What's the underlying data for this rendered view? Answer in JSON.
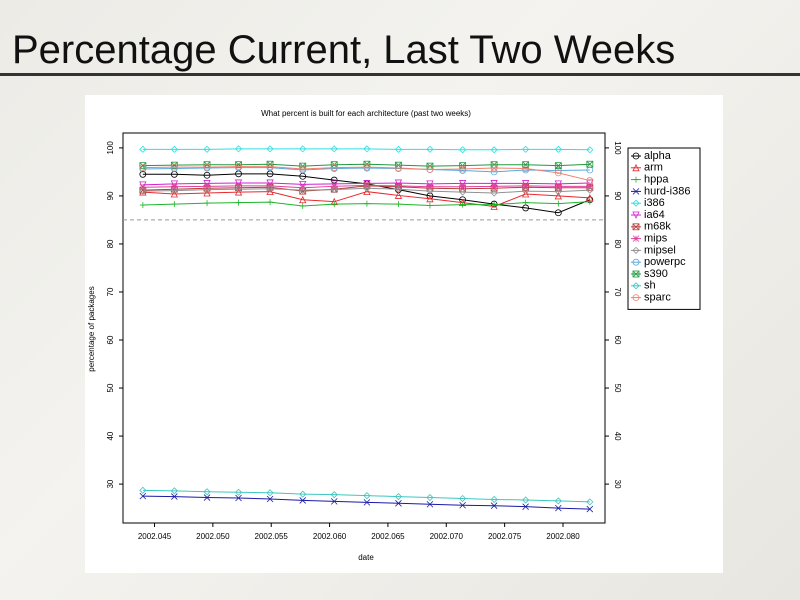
{
  "slide_title": "Percentage Current, Last Two Weeks",
  "chart_data": {
    "type": "line",
    "title": "What percent is built for each architecture (past two weeks)",
    "xlabel": "date",
    "ylabel": "percentage of packages",
    "x": [
      2002.044,
      2002.0467,
      2002.0495,
      2002.0522,
      2002.0549,
      2002.0577,
      2002.0604,
      2002.0632,
      2002.0659,
      2002.0686,
      2002.0714,
      2002.0741,
      2002.0768,
      2002.0796,
      2002.0823
    ],
    "xlim": [
      2002.0423,
      2002.0836
    ],
    "xticks": [
      2002.045,
      {
        "value": 2002.05,
        "label": "2002.050"
      },
      2002.055,
      {
        "value": 2002.06,
        "label": "2002.060"
      },
      2002.065,
      {
        "value": 2002.07,
        "label": "2002.070"
      },
      2002.075,
      {
        "value": 2002.08,
        "label": "2002.080"
      }
    ],
    "ylim": [
      21.9,
      103.1
    ],
    "yticks": [
      30,
      40,
      50,
      60,
      70,
      80,
      90,
      100
    ],
    "reference_line": 85,
    "legend": "top-right",
    "series": [
      {
        "name": "alpha",
        "color": "#000000",
        "marker": "circle",
        "values": [
          94.5,
          94.5,
          94.3,
          94.6,
          94.6,
          94.1,
          93.3,
          92.5,
          91.3,
          90.0,
          89.2,
          88.3,
          87.5,
          86.5,
          89.2
        ]
      },
      {
        "name": "arm",
        "color": "#e8282d",
        "marker": "triangle",
        "values": [
          90.8,
          90.4,
          90.6,
          90.8,
          90.9,
          89.2,
          88.8,
          90.9,
          90.1,
          89.4,
          88.6,
          87.8,
          90.4,
          90.0,
          89.6
        ]
      },
      {
        "name": "hppa",
        "color": "#1fb52a",
        "marker": "plus",
        "values": [
          88.1,
          88.3,
          88.5,
          88.6,
          88.7,
          87.9,
          88.3,
          88.4,
          88.3,
          88.0,
          88.2,
          88.2,
          88.6,
          88.4,
          88.8
        ]
      },
      {
        "name": "hurd-i386",
        "color": "#1a1aa8",
        "marker": "x",
        "values": [
          27.5,
          27.4,
          27.2,
          27.1,
          26.9,
          26.6,
          26.4,
          26.2,
          26.0,
          25.8,
          25.6,
          25.5,
          25.3,
          25.0,
          24.8
        ]
      },
      {
        "name": "i386",
        "color": "#2fe0e0",
        "marker": "diamond",
        "values": [
          99.7,
          99.7,
          99.7,
          99.8,
          99.8,
          99.8,
          99.8,
          99.8,
          99.7,
          99.7,
          99.6,
          99.6,
          99.7,
          99.7,
          99.6
        ]
      },
      {
        "name": "ia64",
        "color": "#d21fd2",
        "marker": "triangle-down",
        "values": [
          92.3,
          92.5,
          92.6,
          92.7,
          92.7,
          92.4,
          92.5,
          92.6,
          92.7,
          92.5,
          92.6,
          92.6,
          92.6,
          92.5,
          92.7
        ]
      },
      {
        "name": "m68k",
        "color": "#b5403a",
        "marker": "square",
        "values": [
          91.2,
          91.4,
          91.6,
          91.7,
          91.8,
          91.0,
          91.4,
          92.1,
          91.9,
          91.6,
          91.5,
          91.6,
          91.8,
          91.7,
          91.7
        ]
      },
      {
        "name": "mips",
        "color": "#e0409a",
        "marker": "star",
        "values": [
          91.8,
          91.9,
          92.0,
          92.1,
          92.1,
          91.7,
          92.0,
          92.2,
          92.1,
          91.9,
          91.9,
          92.0,
          92.1,
          92.0,
          92.0
        ]
      },
      {
        "name": "mipsel",
        "color": "#909090",
        "marker": "diamond",
        "values": [
          91.0,
          91.1,
          91.3,
          91.4,
          91.5,
          91.2,
          91.3,
          91.6,
          91.4,
          91.0,
          90.8,
          90.6,
          91.0,
          90.9,
          91.2
        ]
      },
      {
        "name": "powerpc",
        "color": "#5aa8e0",
        "marker": "circle",
        "values": [
          95.6,
          95.7,
          95.8,
          95.9,
          95.9,
          95.4,
          95.7,
          95.8,
          95.7,
          95.5,
          95.3,
          95.0,
          95.4,
          95.3,
          95.4
        ]
      },
      {
        "name": "s390",
        "color": "#1f9a40",
        "marker": "square",
        "values": [
          96.3,
          96.4,
          96.5,
          96.5,
          96.6,
          96.2,
          96.5,
          96.6,
          96.4,
          96.2,
          96.3,
          96.5,
          96.5,
          96.3,
          96.6
        ]
      },
      {
        "name": "sh",
        "color": "#3cc8c0",
        "marker": "diamond",
        "values": [
          28.7,
          28.6,
          28.4,
          28.3,
          28.2,
          27.9,
          27.8,
          27.6,
          27.4,
          27.2,
          27.0,
          26.8,
          26.7,
          26.5,
          26.3
        ]
      },
      {
        "name": "sparc",
        "color": "#f08070",
        "marker": "circle",
        "values": [
          95.9,
          96.0,
          96.0,
          96.1,
          96.1,
          95.6,
          95.9,
          96.0,
          95.8,
          95.5,
          95.6,
          95.8,
          95.7,
          94.8,
          93.2
        ]
      }
    ]
  }
}
